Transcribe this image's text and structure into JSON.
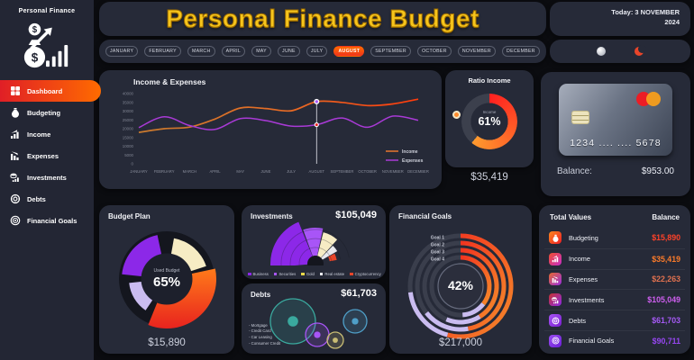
{
  "app": {
    "brand": "Personal Finance",
    "title": "Personal Finance Budget",
    "date_label": "Today: 3 NOVEMBER",
    "date_year": "2024"
  },
  "theme_toggle": {
    "light_icon": "sun",
    "dark_icon": "moon"
  },
  "sidebar": {
    "items": [
      {
        "label": "Dashboard",
        "icon": "dashboard",
        "active": true
      },
      {
        "label": "Budgeting",
        "icon": "budgeting",
        "active": false
      },
      {
        "label": "Income",
        "icon": "income",
        "active": false
      },
      {
        "label": "Expenses",
        "icon": "expenses",
        "active": false
      },
      {
        "label": "Investments",
        "icon": "investments",
        "active": false
      },
      {
        "label": "Debts",
        "icon": "debts",
        "active": false
      },
      {
        "label": "Financial Goals",
        "icon": "goals",
        "active": false
      }
    ]
  },
  "months": {
    "items": [
      "JANUARY",
      "FEBRUARY",
      "MARCH",
      "APRIL",
      "MAY",
      "JUNE",
      "JULY",
      "AUGUST",
      "SEPTEMBER",
      "OCTOBER",
      "NOVEMBER",
      "DECEMBER"
    ],
    "active_index": 7
  },
  "panels": {
    "income_expenses": {
      "title": "Income & Expenses"
    },
    "ratio": {
      "title": "Ratio Income",
      "center_label": "Income",
      "center_value": "61%",
      "total": "$35,419"
    },
    "card": {
      "number": "1234 .... .... 5678",
      "balance_label": "Balance:",
      "balance_value": "$953.00"
    },
    "budget": {
      "title": "Budget Plan",
      "center_label": "Used Budget",
      "center_value": "65%",
      "total": "$15,890"
    },
    "investments": {
      "title": "Investments",
      "total": "$105,049"
    },
    "debts": {
      "title": "Debts",
      "total": "$61,703"
    },
    "goals": {
      "title": "Financial Goals",
      "center_value": "42%",
      "total": "$217,000"
    },
    "totals": {
      "title": "Total Values",
      "balance_col": "Balance",
      "rows": [
        {
          "label": "Budgeting",
          "icon": "budgeting",
          "value": "$15,890",
          "value_color": "#ff4229",
          "icon_gradient": [
            "#ff8a1e",
            "#ed1c24"
          ]
        },
        {
          "label": "Income",
          "icon": "income",
          "value": "$35,419",
          "value_color": "#fb7b2a",
          "icon_gradient": [
            "#f04f2d",
            "#c62dc8"
          ]
        },
        {
          "label": "Expenses",
          "icon": "expenses",
          "value": "$22,263",
          "value_color": "#e0714f",
          "icon_gradient": [
            "#e86a2d",
            "#9a2de0"
          ]
        },
        {
          "label": "Investments",
          "icon": "investments",
          "value": "$105,049",
          "value_color": "#cf5ff0",
          "icon_gradient": [
            "#c8342d",
            "#8c28e8"
          ]
        },
        {
          "label": "Debts",
          "icon": "debts",
          "value": "$61,703",
          "value_color": "#a55af5",
          "icon_gradient": [
            "#a855f7",
            "#7a1fd0"
          ]
        },
        {
          "label": "Financial Goals",
          "icon": "goals",
          "value": "$90,711",
          "value_color": "#9747f2",
          "icon_gradient": [
            "#9a4df0",
            "#6d1fd8"
          ]
        }
      ]
    }
  },
  "chart_data": [
    {
      "id": "income_expenses",
      "type": "line",
      "title": "Income & Expenses",
      "x": [
        "JANUARY",
        "FEBRUARY",
        "MARCH",
        "APRIL",
        "MAY",
        "JUNE",
        "JULY",
        "AUGUST",
        "SEPTEMBER",
        "OCTOBER",
        "NOVEMBER",
        "DECEMBER"
      ],
      "ylim": [
        0,
        40000
      ],
      "yticks": [
        0,
        5000,
        10000,
        15000,
        20000,
        25000,
        30000,
        35000,
        40000
      ],
      "series": [
        {
          "name": "Income",
          "color": "#e8772e",
          "color_end": "#ff3b0c",
          "values": [
            17900,
            20000,
            20900,
            25500,
            31800,
            31500,
            30200,
            35419,
            35000,
            33200,
            34100,
            36800
          ]
        },
        {
          "name": "Expenses",
          "color": "#a93ad6",
          "values": [
            20600,
            26800,
            21800,
            19600,
            25800,
            24600,
            21500,
            22263,
            26100,
            20800,
            27200,
            24800
          ]
        }
      ],
      "marker_month_index": 7
    },
    {
      "id": "ratio_income",
      "type": "gauge",
      "label": "Income",
      "percent": 61,
      "total": 35419,
      "colors": {
        "start": "#ff2020",
        "end": "#ff9a2e",
        "track": "#3c404d"
      }
    },
    {
      "id": "budget_plan",
      "type": "donut",
      "percent_used": 65,
      "total": 15890,
      "segments": [
        {
          "name": "used-purple",
          "color": "#8c28e8",
          "from": 276,
          "to": 348,
          "r": 50
        },
        {
          "name": "used-cream",
          "color": "#f6ecc4",
          "from": 10,
          "to": 72,
          "r": 46
        },
        {
          "name": "used-orange",
          "color": "gradient",
          "from": 78,
          "to": 202,
          "r": 55
        },
        {
          "name": "used-lavender",
          "color": "#cabcf0",
          "from": 214,
          "to": 264,
          "r": 42
        }
      ]
    },
    {
      "id": "investments",
      "type": "rose",
      "total": 105049,
      "segments": [
        {
          "label": "Business",
          "color": "#8c28e8",
          "from": -95,
          "to": -22,
          "r": 50
        },
        {
          "label": "Securities",
          "color": "#a855f7",
          "from": -20,
          "to": 12,
          "r": 40
        },
        {
          "label": "Gold",
          "color": "#f6ecc4",
          "from": 14,
          "to": 42,
          "r": 36
        },
        {
          "label": "Real estate",
          "color": "#e9eaef",
          "from": 44,
          "to": 60,
          "r": 28
        },
        {
          "label": "Cryptocurrency",
          "color": "#e8452a",
          "from": 62,
          "to": 80,
          "r": 24,
          "arc": true
        }
      ]
    },
    {
      "id": "debts",
      "type": "bubble",
      "total": 61703,
      "bubbles": [
        {
          "label": "Mortgage",
          "color": "#3aa99e",
          "x": 57,
          "y": 42,
          "r": 25
        },
        {
          "label": "Credit Card",
          "color": "#a855f7",
          "x": 84,
          "y": 57,
          "r": 13
        },
        {
          "label": "Car Leasing",
          "color": "#c9bd74",
          "x": 104,
          "y": 63,
          "r": 9
        },
        {
          "label": "Consumer Credit",
          "color": "#4f9fc8",
          "x": 126,
          "y": 42,
          "r": 13
        }
      ]
    },
    {
      "id": "financial_goals",
      "type": "radial",
      "percent": 42,
      "total": 217000,
      "rings": [
        {
          "label": "Goal 1",
          "r": 56,
          "main_deg": 195,
          "secondary_deg": 68
        },
        {
          "label": "Goal 2",
          "r": 48,
          "main_deg": 170,
          "secondary_deg": 62
        },
        {
          "label": "Goal 3",
          "r": 40,
          "main_deg": 148,
          "secondary_deg": 55
        },
        {
          "label": "Goal 4",
          "r": 32,
          "main_deg": 128,
          "secondary_deg": 48
        }
      ],
      "colors": {
        "main_start": "#f23420",
        "main_end": "#f5882a",
        "secondary": "#cabcf0",
        "track": "#3a3e4c"
      }
    }
  ]
}
